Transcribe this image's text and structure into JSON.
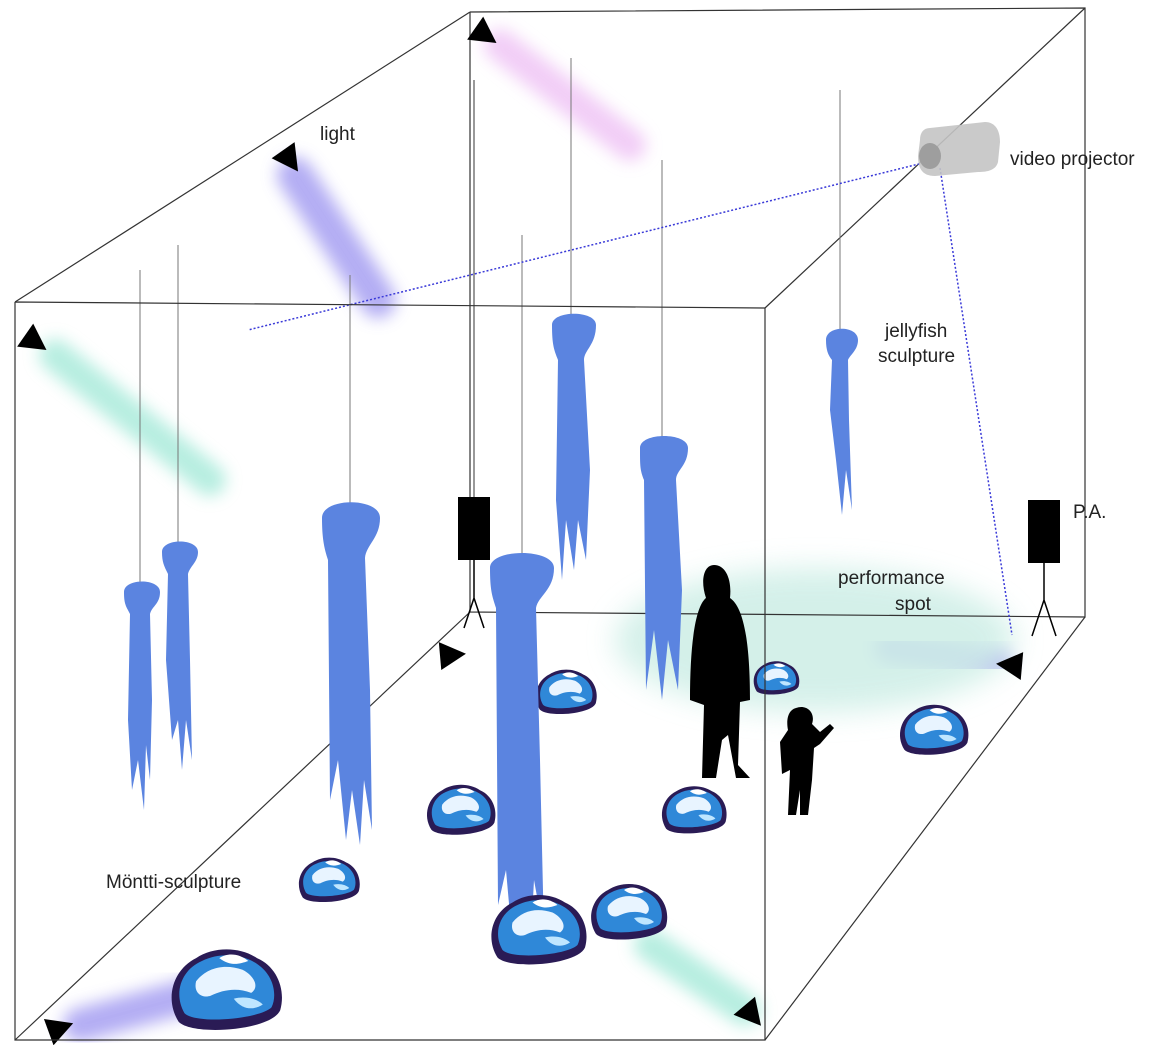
{
  "labels": {
    "light": "light",
    "video_projector": "video projector",
    "jellyfish_line1": "jellyfish",
    "jellyfish_line2": "sculpture",
    "pa": "P.A.",
    "performance_line1": "performance",
    "performance_line2": "spot",
    "montti": "Möntti-sculpture"
  },
  "colors": {
    "jellyfish": "#5b84e0",
    "light_purple": "#9a92f0",
    "light_mint": "#7de0c8",
    "light_pink": "#e7a6f0",
    "performance_spot": "#cdeee6",
    "projector_line": "#3a3ad8",
    "rock_blue": "#2f88d8",
    "rock_dark": "#2a1b55",
    "edge": "#333333",
    "silhouette": "#000000",
    "projector": "#c4c4c4"
  }
}
